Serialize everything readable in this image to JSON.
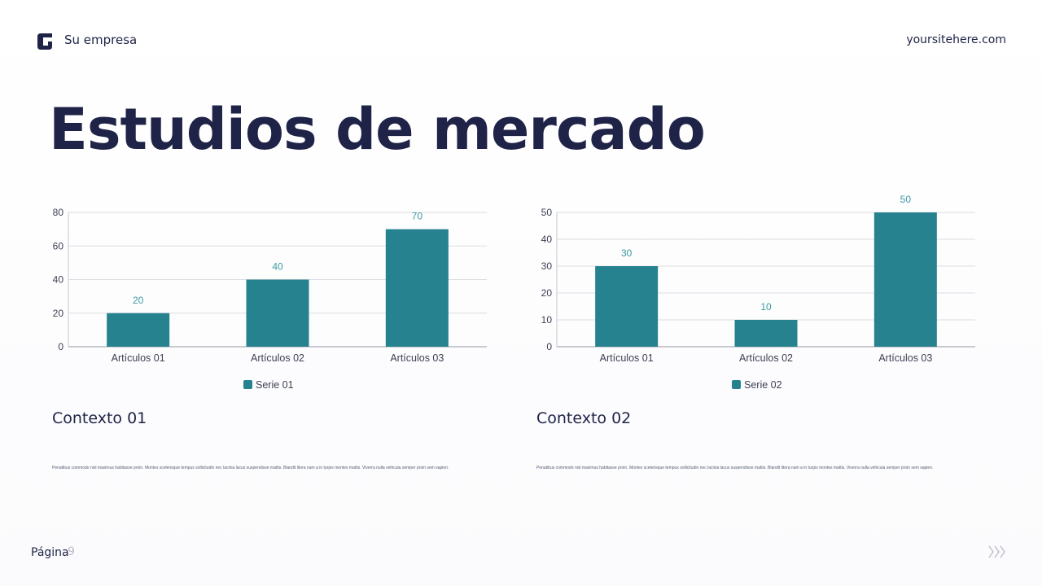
{
  "header": {
    "logo_icon": "brand-logo-icon",
    "company": "Su empresa",
    "site": "yoursitehere.com"
  },
  "title": "Estudios de mercado",
  "colors": {
    "primary": "#1f2347",
    "bar": "#26828e",
    "label": "#3a9aa0",
    "grid": "#dcdde3",
    "muted": "#b8bac7"
  },
  "chart_data": [
    {
      "type": "bar",
      "categories": [
        "Artículos 01",
        "Artículos 02",
        "Artículos 03"
      ],
      "series": [
        {
          "name": "Serie 01",
          "values": [
            20,
            40,
            70
          ]
        }
      ],
      "ylim": [
        0,
        80
      ],
      "yticks": [
        0,
        20,
        40,
        60,
        80
      ],
      "title": "",
      "xlabel": "",
      "ylabel": "",
      "grid": true,
      "legend": "bottom",
      "data_labels": true
    },
    {
      "type": "bar",
      "categories": [
        "Artículos 01",
        "Artículos 02",
        "Artículos 03"
      ],
      "series": [
        {
          "name": "Serie 02",
          "values": [
            30,
            10,
            50
          ]
        }
      ],
      "ylim": [
        0,
        50
      ],
      "yticks": [
        0,
        10,
        20,
        30,
        40,
        50
      ],
      "title": "",
      "xlabel": "",
      "ylabel": "",
      "grid": true,
      "legend": "bottom",
      "data_labels": true
    }
  ],
  "contexts": [
    {
      "heading": "Contexto 01",
      "body": "Penatibus commodo nisl maximus habitasse proin. Montes scelerisque tempus sollicitudin nec lacinia lacus suspendisse mattis. Blandit litora nam a in turpis montes mattis. Viverra nulla vehicula semper proin sem sapien."
    },
    {
      "heading": "Contexto 02",
      "body": "Penatibus commodo nisl maximus habitasse proin. Montes scelerisque tempus sollicitudin nec lacinia lacus suspendisse mattis. Blandit litora nam a in turpis montes mattis. Viverra nulla vehicula semper proin sem sapien."
    }
  ],
  "footer": {
    "page_label": "Página",
    "page_number": "9",
    "next_icon": "triple-chevron-right-icon"
  }
}
